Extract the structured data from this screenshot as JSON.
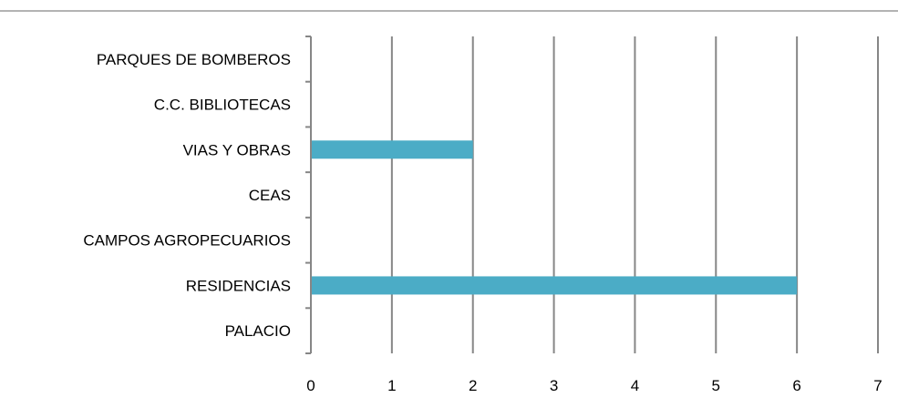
{
  "chart_data": {
    "type": "bar",
    "orientation": "horizontal",
    "categories": [
      "PALACIO",
      "RESIDENCIAS",
      "CAMPOS AGROPECUARIOS",
      "CEAS",
      "VIAS Y OBRAS",
      "C.C. BIBLIOTECAS",
      "PARQUES DE BOMBEROS"
    ],
    "values": [
      0,
      6,
      0,
      0,
      2,
      0,
      0
    ],
    "xlim": [
      0,
      7
    ],
    "x_ticks": [
      "0",
      "1",
      "2",
      "3",
      "4",
      "5",
      "6",
      "7"
    ],
    "grid": "vertical",
    "legend": "none",
    "colors": {
      "bar": "#4bacc6",
      "grid": "#868686",
      "axis": "#868686",
      "top_rule": "#9a9a9a",
      "text": "#000000"
    }
  }
}
